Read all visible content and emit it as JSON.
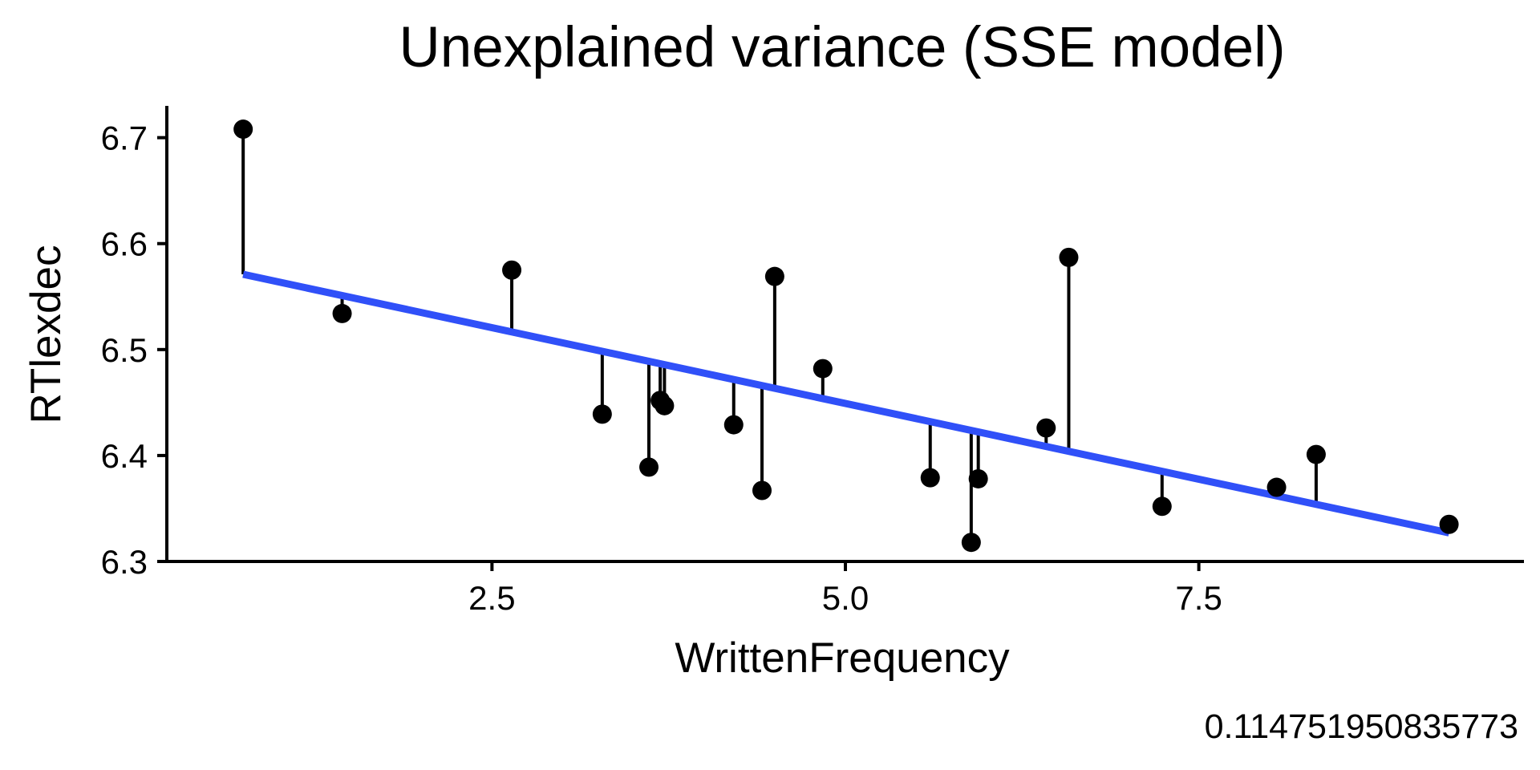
{
  "chart_data": {
    "type": "scatter",
    "title": "Unexplained variance (SSE model)",
    "xlabel": "WrittenFrequency",
    "ylabel": "RTlexdec",
    "caption": "0.114751950835773",
    "xlim": [
      0.2,
      9.8
    ],
    "ylim": [
      6.3,
      6.73
    ],
    "x_ticks": [
      {
        "value": 2.5,
        "label": "2.5"
      },
      {
        "value": 5.0,
        "label": "5.0"
      },
      {
        "value": 7.5,
        "label": "7.5"
      }
    ],
    "y_ticks": [
      {
        "value": 6.3,
        "label": "6.3"
      },
      {
        "value": 6.4,
        "label": "6.4"
      },
      {
        "value": 6.5,
        "label": "6.5"
      },
      {
        "value": 6.6,
        "label": "6.6"
      },
      {
        "value": 6.7,
        "label": "6.7"
      }
    ],
    "grid": false,
    "legend": "none",
    "point_color": "#000000",
    "residual_color": "#000000",
    "fit_line": {
      "color": "#3050F8",
      "x": [
        0.74,
        9.27
      ],
      "y": [
        6.571,
        6.327
      ]
    },
    "points": [
      {
        "x": 0.74,
        "y": 6.708,
        "fitted": 6.571
      },
      {
        "x": 1.44,
        "y": 6.534,
        "fitted": 6.551
      },
      {
        "x": 2.64,
        "y": 6.575,
        "fitted": 6.517
      },
      {
        "x": 3.28,
        "y": 6.439,
        "fitted": 6.499
      },
      {
        "x": 3.61,
        "y": 6.389,
        "fitted": 6.489
      },
      {
        "x": 3.69,
        "y": 6.452,
        "fitted": 6.487
      },
      {
        "x": 3.72,
        "y": 6.447,
        "fitted": 6.486
      },
      {
        "x": 4.21,
        "y": 6.429,
        "fitted": 6.472
      },
      {
        "x": 4.41,
        "y": 6.367,
        "fitted": 6.466
      },
      {
        "x": 4.5,
        "y": 6.569,
        "fitted": 6.464
      },
      {
        "x": 4.84,
        "y": 6.482,
        "fitted": 6.454
      },
      {
        "x": 5.6,
        "y": 6.379,
        "fitted": 6.432
      },
      {
        "x": 5.89,
        "y": 6.318,
        "fitted": 6.424
      },
      {
        "x": 5.94,
        "y": 6.378,
        "fitted": 6.423
      },
      {
        "x": 6.42,
        "y": 6.426,
        "fitted": 6.409
      },
      {
        "x": 6.58,
        "y": 6.587,
        "fitted": 6.404
      },
      {
        "x": 7.24,
        "y": 6.352,
        "fitted": 6.386
      },
      {
        "x": 8.05,
        "y": 6.37,
        "fitted": 6.362
      },
      {
        "x": 8.33,
        "y": 6.401,
        "fitted": 6.354
      },
      {
        "x": 9.27,
        "y": 6.335,
        "fitted": 6.327
      }
    ]
  }
}
